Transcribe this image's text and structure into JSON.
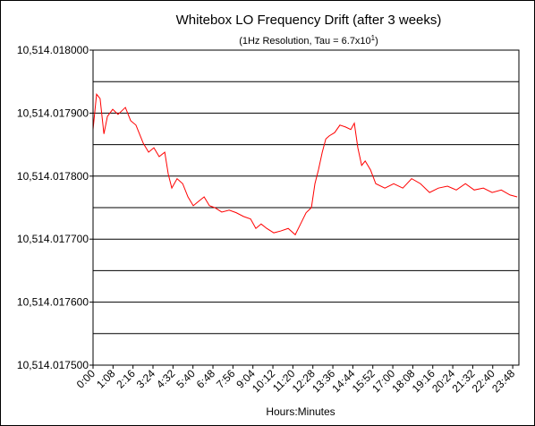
{
  "chart_data": {
    "type": "line",
    "title": "Whitebox LO Frequency Drift (after 3 weeks)",
    "subtitle": "(1Hz Resolution, Tau = 6.7x10",
    "subtitle_exponent": "1",
    "subtitle_end": ")",
    "x_label": "Hours:Minutes",
    "xlim": [
      0,
      1449
    ],
    "ylim": [
      10514.0175,
      10514.018
    ],
    "yticks": [
      {
        "value": 10514.0175,
        "label": "10,514.017500"
      },
      {
        "value": 10514.0176,
        "label": "10,514.017600"
      },
      {
        "value": 10514.0177,
        "label": "10,514.017700"
      },
      {
        "value": 10514.0178,
        "label": "10,514.017800"
      },
      {
        "value": 10514.0179,
        "label": "10,514.017900"
      },
      {
        "value": 10514.018,
        "label": "10,514.018000"
      }
    ],
    "minor_yticks": [
      10514.01755,
      10514.01765,
      10514.01775,
      10514.01785,
      10514.01795
    ],
    "xticks": [
      {
        "value": 0,
        "label": "0:00"
      },
      {
        "value": 68,
        "label": "1:08"
      },
      {
        "value": 136,
        "label": "2:16"
      },
      {
        "value": 204,
        "label": "3:24"
      },
      {
        "value": 272,
        "label": "4:32"
      },
      {
        "value": 340,
        "label": "5:40"
      },
      {
        "value": 408,
        "label": "6:48"
      },
      {
        "value": 476,
        "label": "7:56"
      },
      {
        "value": 544,
        "label": "9:04"
      },
      {
        "value": 612,
        "label": "10:12"
      },
      {
        "value": 680,
        "label": "11:20"
      },
      {
        "value": 748,
        "label": "12:28"
      },
      {
        "value": 816,
        "label": "13:36"
      },
      {
        "value": 884,
        "label": "14:44"
      },
      {
        "value": 952,
        "label": "15:52"
      },
      {
        "value": 1020,
        "label": "17:00"
      },
      {
        "value": 1088,
        "label": "18:08"
      },
      {
        "value": 1156,
        "label": "19:16"
      },
      {
        "value": 1224,
        "label": "20:24"
      },
      {
        "value": 1292,
        "label": "21:32"
      },
      {
        "value": 1360,
        "label": "22:40"
      },
      {
        "value": 1428,
        "label": "23:48"
      }
    ],
    "grid": true,
    "series": [
      {
        "color": "#ff0000",
        "x": [
          0,
          12,
          24,
          37,
          49,
          67,
          85,
          110,
          128,
          146,
          171,
          189,
          207,
          225,
          244,
          256,
          268,
          286,
          305,
          323,
          341,
          359,
          378,
          396,
          414,
          438,
          463,
          487,
          512,
          536,
          554,
          572,
          591,
          615,
          639,
          664,
          688,
          706,
          725,
          743,
          755,
          767,
          780,
          792,
          804,
          822,
          840,
          859,
          877,
          889,
          901,
          914,
          926,
          944,
          962,
          993,
          1023,
          1054,
          1084,
          1114,
          1145,
          1175,
          1206,
          1236,
          1267,
          1297,
          1328,
          1358,
          1389,
          1419,
          1443
        ],
        "values": [
          10514.017874,
          10514.01793,
          10514.017923,
          10514.017867,
          10514.017895,
          10514.017906,
          10514.017898,
          10514.017909,
          10514.017888,
          10514.017881,
          10514.017852,
          10514.017838,
          10514.017845,
          10514.017831,
          10514.017838,
          10514.017803,
          10514.017781,
          10514.017796,
          10514.017788,
          10514.017767,
          10514.017753,
          10514.01776,
          10514.017767,
          10514.017753,
          10514.01775,
          10514.017743,
          10514.017746,
          10514.017742,
          10514.017736,
          10514.017732,
          10514.017717,
          10514.017724,
          10514.017717,
          10514.01771,
          10514.017713,
          10514.017717,
          10514.017707,
          10514.017724,
          10514.017742,
          10514.01775,
          10514.017788,
          10514.01781,
          10514.017838,
          10514.017859,
          10514.017864,
          10514.017869,
          10514.017881,
          10514.017878,
          10514.017874,
          10514.017884,
          10514.017845,
          10514.017817,
          10514.017824,
          10514.01781,
          10514.017788,
          10514.017781,
          10514.017788,
          10514.017781,
          10514.017796,
          10514.017788,
          10514.017774,
          10514.017781,
          10514.017784,
          10514.017778,
          10514.017788,
          10514.017778,
          10514.017781,
          10514.017774,
          10514.017778,
          10514.01777,
          10514.017767
        ]
      }
    ]
  }
}
